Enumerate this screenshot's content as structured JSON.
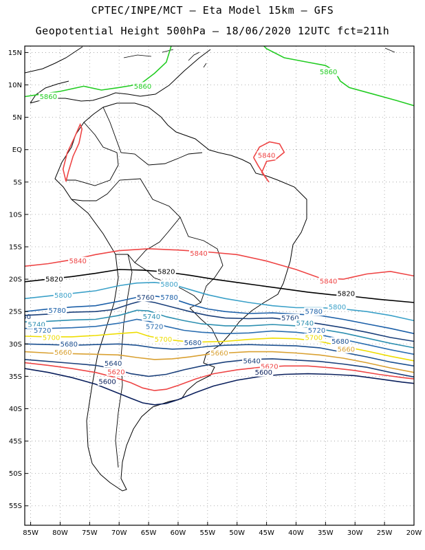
{
  "header": {
    "line1": "CPTEC/INPE/MCT –  Eta Model 15km – GFS",
    "line2": "Geopotential Height 500hPa – 18/06/2020 12UTC fct=211h"
  },
  "map": {
    "lat_ticks": [
      "15N",
      "10N",
      "5N",
      "EQ",
      "5S",
      "10S",
      "15S",
      "20S",
      "25S",
      "30S",
      "35S",
      "40S",
      "45S",
      "50S",
      "55S"
    ],
    "lon_ticks": [
      "85W",
      "80W",
      "75W",
      "70W",
      "65W",
      "60W",
      "55W",
      "50W",
      "45W",
      "40W",
      "35W",
      "30W",
      "25W",
      "20W"
    ],
    "lon_range": [
      -86,
      -20
    ],
    "lat_range": [
      -58,
      16
    ]
  },
  "contours": [
    {
      "label": "5860",
      "color": "#22cc22",
      "labels": [
        {
          "lon": -82.0,
          "lat": 8.2
        },
        {
          "lon": -66.0,
          "lat": 9.8
        },
        {
          "lon": -34.5,
          "lat": 12.0
        }
      ]
    },
    {
      "label": "5840",
      "color": "#ee4444",
      "labels": [
        {
          "lon": -77.0,
          "lat": -17.2
        },
        {
          "lon": -56.5,
          "lat": -16.0
        },
        {
          "lon": -34.5,
          "lat": -20.3
        },
        {
          "lon": -45.0,
          "lat": -0.9
        }
      ]
    },
    {
      "label": "5820",
      "color": "#000000",
      "labels": [
        {
          "lon": -81.0,
          "lat": -20.0
        },
        {
          "lon": -62.0,
          "lat": -18.8
        },
        {
          "lon": -31.5,
          "lat": -22.2
        }
      ]
    },
    {
      "label": "5800",
      "color": "#3aa0c8",
      "labels": [
        {
          "lon": -79.5,
          "lat": -22.5
        },
        {
          "lon": -61.5,
          "lat": -20.8
        },
        {
          "lon": -33.0,
          "lat": -24.3
        }
      ]
    },
    {
      "label": "5780",
      "color": "#1b5fa8",
      "labels": [
        {
          "lon": -80.5,
          "lat": -24.8
        },
        {
          "lon": -61.5,
          "lat": -22.8
        },
        {
          "lon": -37.0,
          "lat": -25.0
        }
      ]
    },
    {
      "label": "5760",
      "color": "#1a3f7a",
      "labels": [
        {
          "lon": -65.5,
          "lat": -22.8
        },
        {
          "lon": -41.0,
          "lat": -26.0
        }
      ]
    },
    {
      "label": "5740",
      "color": "#2c8fb0",
      "labels": [
        {
          "lon": -84.0,
          "lat": -27.0
        },
        {
          "lon": -64.5,
          "lat": -25.8
        },
        {
          "lon": -38.5,
          "lat": -26.8
        }
      ]
    },
    {
      "label": "5720",
      "color": "#2a6db0",
      "labels": [
        {
          "lon": -83.0,
          "lat": -27.9
        },
        {
          "lon": -64.0,
          "lat": -27.3
        },
        {
          "lon": -36.5,
          "lat": -27.9
        }
      ]
    },
    {
      "label": "5700",
      "color": "#eedd00",
      "labels": [
        {
          "lon": -81.5,
          "lat": -29.0
        },
        {
          "lon": -62.5,
          "lat": -29.3
        },
        {
          "lon": -37.0,
          "lat": -29.0
        }
      ]
    },
    {
      "label": "5680",
      "color": "#1b4f90",
      "labels": [
        {
          "lon": -78.5,
          "lat": -30.0
        },
        {
          "lon": -57.5,
          "lat": -29.8
        },
        {
          "lon": -32.5,
          "lat": -29.6
        }
      ]
    },
    {
      "label": "5660",
      "color": "#d9a030",
      "labels": [
        {
          "lon": -79.5,
          "lat": -31.3
        },
        {
          "lon": -53.0,
          "lat": -31.4
        },
        {
          "lon": -31.5,
          "lat": -30.8
        }
      ]
    },
    {
      "label": "5640",
      "color": "#1a3f7a",
      "labels": [
        {
          "lon": -71.0,
          "lat": -33.0
        },
        {
          "lon": -47.5,
          "lat": -32.6
        }
      ]
    },
    {
      "label": "5620",
      "color": "#ee4444",
      "labels": [
        {
          "lon": -70.5,
          "lat": -34.3
        },
        {
          "lon": -44.5,
          "lat": -33.5
        }
      ]
    },
    {
      "label": "5600",
      "color": "#0a1f5c",
      "labels": [
        {
          "lon": -72.0,
          "lat": -35.8
        },
        {
          "lon": -45.5,
          "lat": -34.4
        }
      ]
    }
  ],
  "partial_labels": [
    {
      "text": "80",
      "lon": -85.7,
      "lat": -25.8,
      "color": "#1a3f7a"
    }
  ]
}
